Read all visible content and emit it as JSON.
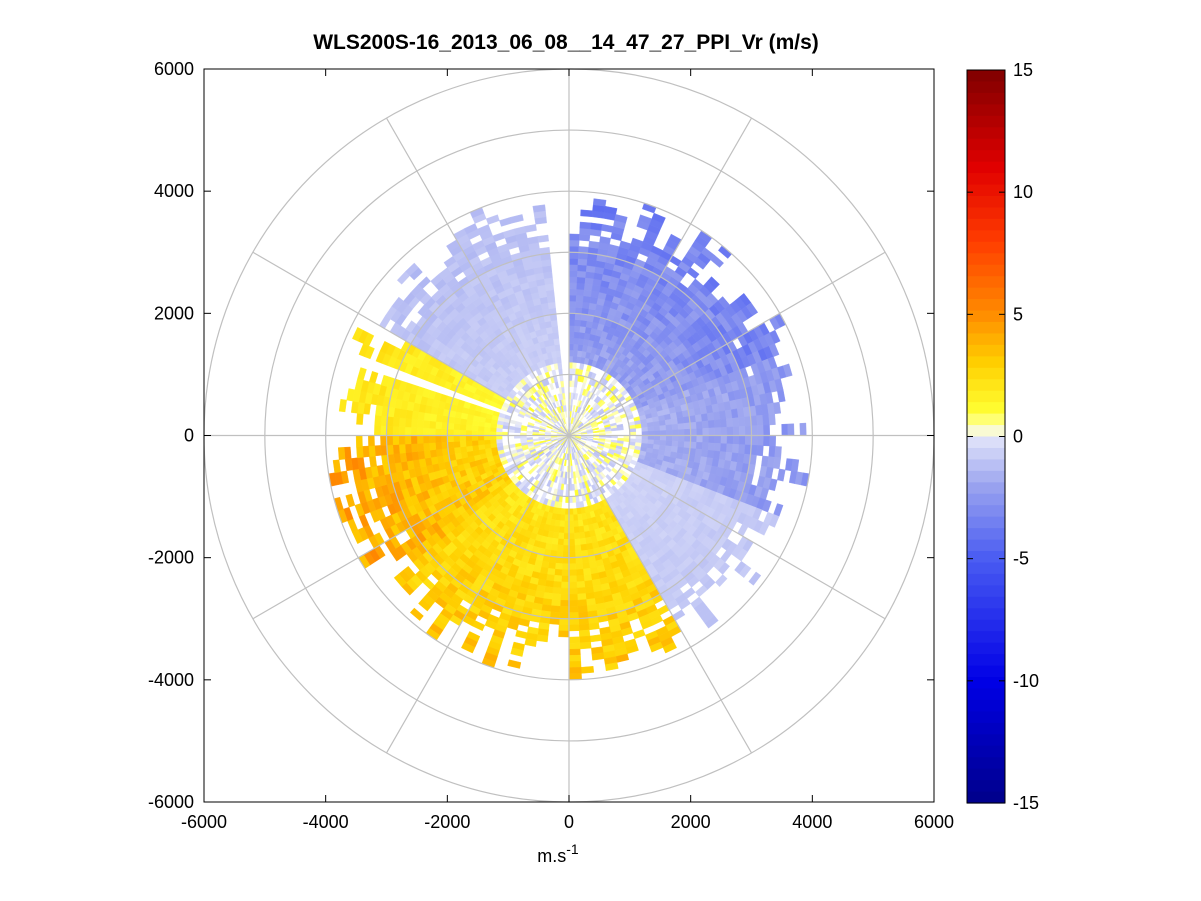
{
  "chart_data": {
    "type": "heatmap",
    "subtype": "polar-ppi-scan",
    "title": "WLS200S-16_2013_06_08__14_47_27_PPI_Vr (m/s)",
    "xlabel": "m.s",
    "xlabel_superscript": "-1",
    "ylabel": "",
    "xlim": [
      -6000,
      6000
    ],
    "ylim": [
      -6000,
      6000
    ],
    "xticks": [
      -6000,
      -4000,
      -2000,
      0,
      2000,
      4000,
      6000
    ],
    "yticks": [
      -6000,
      -4000,
      -2000,
      0,
      2000,
      4000,
      6000
    ],
    "xtick_labels": [
      "-6000",
      "-4000",
      "-2000",
      "0",
      "2000",
      "4000",
      "6000"
    ],
    "ytick_labels": [
      "6000",
      "4000",
      "2000",
      "0",
      "-2000",
      "-4000",
      "-6000"
    ],
    "polar_grid": {
      "ring_radii": [
        1000,
        2000,
        3000,
        4000,
        5000,
        6000
      ],
      "spoke_angles_deg": [
        0,
        30,
        60,
        90,
        120,
        150,
        180,
        210,
        240,
        270,
        300,
        330
      ],
      "grid_color": "#c0c0c0"
    },
    "colorbar": {
      "range": [
        -15,
        15
      ],
      "ticks": [
        15,
        10,
        5,
        0,
        -5,
        -10,
        -15
      ],
      "tick_labels": [
        "15",
        "10",
        "5",
        "0",
        "-5",
        "-10",
        "-15"
      ],
      "colormap": "blue-white-yellow-red",
      "stops": [
        {
          "v": -15,
          "c": "#00008a"
        },
        {
          "v": -10,
          "c": "#0000e6"
        },
        {
          "v": -5,
          "c": "#4a5cf2"
        },
        {
          "v": -2,
          "c": "#9ba4ef"
        },
        {
          "v": 0,
          "c": "#e4e6fa"
        },
        {
          "v": 0.3,
          "c": "#ffffc8"
        },
        {
          "v": 1,
          "c": "#ffff33"
        },
        {
          "v": 3,
          "c": "#ffd000"
        },
        {
          "v": 5,
          "c": "#ff8c00"
        },
        {
          "v": 8,
          "c": "#ff3c00"
        },
        {
          "v": 11,
          "c": "#e00000"
        },
        {
          "v": 15,
          "c": "#7f0000"
        }
      ]
    },
    "scan": {
      "max_range_m": 3700,
      "range_gate_m": 100,
      "azimuth_step_deg": 3,
      "velocity_sectors": [
        {
          "az_from_deg": 0,
          "az_to_deg": 70,
          "vr_ms": -2.6
        },
        {
          "az_from_deg": 70,
          "az_to_deg": 110,
          "vr_ms": -1.9
        },
        {
          "az_from_deg": 110,
          "az_to_deg": 150,
          "vr_ms": -0.7
        },
        {
          "az_from_deg": 150,
          "az_to_deg": 230,
          "vr_ms": 2.4
        },
        {
          "az_from_deg": 230,
          "az_to_deg": 270,
          "vr_ms": 3.2
        },
        {
          "az_from_deg": 270,
          "az_to_deg": 300,
          "vr_ms": 1.6
        },
        {
          "az_from_deg": 300,
          "az_to_deg": 355,
          "vr_ms": -0.9
        }
      ],
      "data_gaps_deg": [
        [
          355,
          360
        ],
        [
          288,
          292
        ]
      ],
      "gap_note": "beam blocked sectors"
    }
  }
}
